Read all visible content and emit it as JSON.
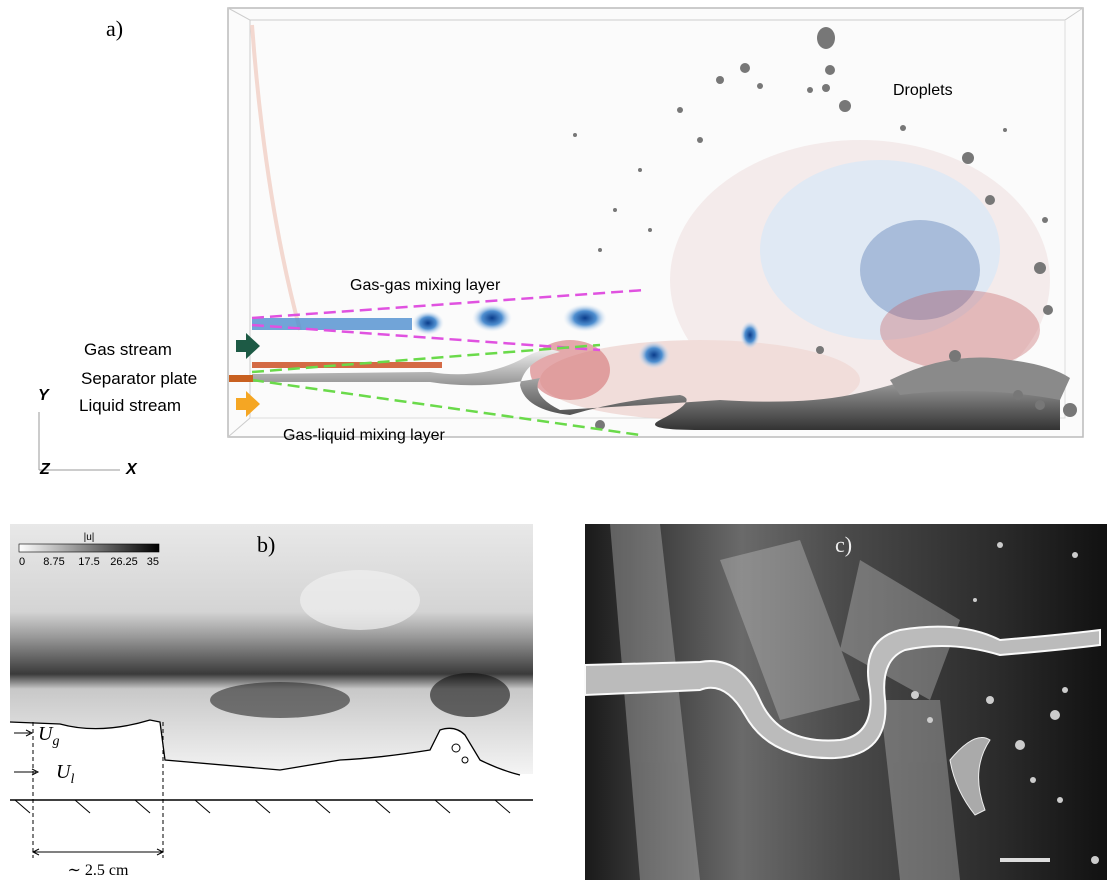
{
  "panel_a": {
    "label": "a)",
    "annotations": {
      "droplets": "Droplets",
      "gas_gas": "Gas-gas mixing layer",
      "gas_liquid": "Gas-liquid mixing layer"
    },
    "inlets": {
      "gas": "Gas stream",
      "plate": "Separator plate",
      "liquid": "Liquid stream"
    },
    "axes": {
      "y": "Y",
      "z": "Z",
      "x": "X"
    }
  },
  "panel_b": {
    "label": "b)",
    "colorbar": {
      "title": "|u|",
      "ticks": [
        "0",
        "8.75",
        "17.5",
        "26.25",
        "35"
      ]
    },
    "gas_velocity": {
      "symbol": "U",
      "subscript": "g"
    },
    "liquid_velocity": {
      "symbol": "U",
      "subscript": "l"
    },
    "scale": "∼ 2.5 cm"
  },
  "panel_c": {
    "label": "c)"
  }
}
